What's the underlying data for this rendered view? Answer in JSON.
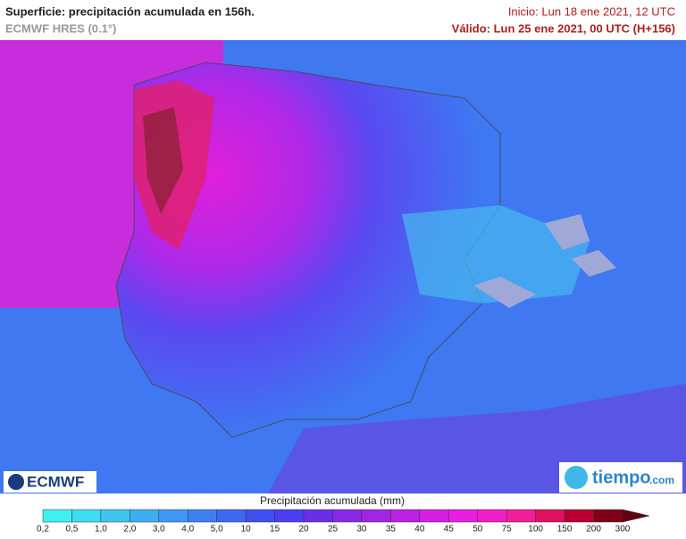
{
  "header": {
    "title": "Superficie: precipitación acumulada en 156h.",
    "model": "ECMWF HRES (0.1°)",
    "init": "Inicio: Lun 18 ene 2021, 12 UTC",
    "valid": "Válido: Lun 25 ene 2021, 00 UTC (H+156)"
  },
  "legend": {
    "title": "Precipitación acumulada (mm)",
    "labels": [
      "0,2",
      "0,5",
      "1,0",
      "2,0",
      "3,0",
      "4,0",
      "5,0",
      "10",
      "15",
      "20",
      "25",
      "30",
      "35",
      "40",
      "45",
      "50",
      "75",
      "100",
      "150",
      "200",
      "300"
    ],
    "colors": [
      "#3ef0f0",
      "#3edcf0",
      "#3ec6f0",
      "#3eaef2",
      "#3e98f2",
      "#3e80f2",
      "#3e68f2",
      "#3e50f0",
      "#4a3ef0",
      "#6a2ee8",
      "#8a28e6",
      "#a224e4",
      "#bc20e4",
      "#d41ee4",
      "#e81ee0",
      "#f01ec8",
      "#f01e98",
      "#e01060",
      "#b80030",
      "#800018",
      "#600010"
    ]
  },
  "logos": {
    "ecmwf": "ECMWF",
    "tiempo": "tiempo",
    "tiempo_suffix": ".com"
  }
}
